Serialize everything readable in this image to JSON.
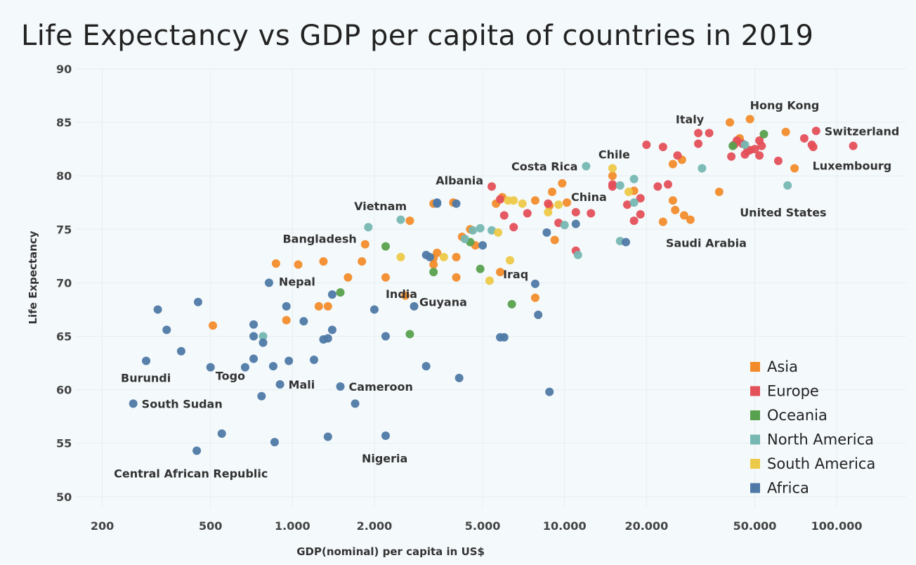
{
  "colors": {
    "Asia": "#f28c2b",
    "Europe": "#e4505a",
    "Oceania": "#58a14e",
    "North America": "#76b7b2",
    "South America": "#edc948",
    "Africa": "#4e79a7"
  },
  "chart_data": {
    "type": "scatter",
    "title": "Life Expectancy vs GDP per capita of countries in 2019",
    "xlabel": "GDP(nominal) per capita in US$",
    "ylabel": "Life Expectancy",
    "xscale": "log",
    "xlim": [
      160,
      180000
    ],
    "ylim": [
      49,
      90
    ],
    "x_ticks": [
      {
        "value": 200,
        "label": "200"
      },
      {
        "value": 500,
        "label": "500"
      },
      {
        "value": 1000,
        "label": "1.000"
      },
      {
        "value": 2000,
        "label": "2.000"
      },
      {
        "value": 5000,
        "label": "5.000"
      },
      {
        "value": 10000,
        "label": "10.000"
      },
      {
        "value": 20000,
        "label": "20.000"
      },
      {
        "value": 50000,
        "label": "50.000"
      },
      {
        "value": 100000,
        "label": "100.000"
      }
    ],
    "y_ticks": [
      50,
      55,
      60,
      65,
      70,
      75,
      80,
      85,
      90
    ],
    "grid": true,
    "legend_position": "bottom-right",
    "legend": [
      "Asia",
      "Europe",
      "Oceania",
      "North America",
      "South America",
      "Africa"
    ],
    "series": [
      {
        "name": "Asia",
        "points": [
          [
            40500,
            85.0
          ],
          [
            44000,
            83.5
          ],
          [
            48000,
            85.3
          ],
          [
            65000,
            84.1
          ],
          [
            70000,
            80.7
          ],
          [
            27000,
            81.5
          ],
          [
            25000,
            81.1
          ],
          [
            37000,
            78.5
          ],
          [
            23000,
            75.7
          ],
          [
            25000,
            77.7
          ],
          [
            25500,
            76.8
          ],
          [
            27500,
            76.3
          ],
          [
            29000,
            75.9
          ],
          [
            18000,
            78.6
          ],
          [
            15000,
            80.0
          ],
          [
            10200,
            77.5
          ],
          [
            9800,
            79.3
          ],
          [
            9000,
            78.5
          ],
          [
            8800,
            77.2
          ],
          [
            7800,
            77.7
          ],
          [
            9200,
            74.0
          ],
          [
            7800,
            68.6
          ],
          [
            5600,
            77.4
          ],
          [
            5900,
            78.0
          ],
          [
            4700,
            73.5
          ],
          [
            4200,
            74.3
          ],
          [
            4500,
            75.0
          ],
          [
            4000,
            72.4
          ],
          [
            4000,
            70.5
          ],
          [
            5800,
            71.0
          ],
          [
            3400,
            72.8
          ],
          [
            3300,
            71.7
          ],
          [
            3300,
            72.3
          ],
          [
            3300,
            77.4
          ],
          [
            3900,
            77.5
          ],
          [
            2700,
            75.8
          ],
          [
            1850,
            73.6
          ],
          [
            1800,
            72.0
          ],
          [
            2200,
            70.5
          ],
          [
            2600,
            68.8
          ],
          [
            1600,
            70.5
          ],
          [
            1350,
            67.8
          ],
          [
            1250,
            67.8
          ],
          [
            1300,
            72.0
          ],
          [
            1050,
            71.7
          ],
          [
            870,
            71.8
          ],
          [
            950,
            66.5
          ],
          [
            510,
            66.0
          ]
        ]
      },
      {
        "name": "Europe",
        "points": [
          [
            84000,
            84.2
          ],
          [
            81000,
            82.9
          ],
          [
            76000,
            83.5
          ],
          [
            82000,
            82.7
          ],
          [
            115000,
            82.8
          ],
          [
            61000,
            81.4
          ],
          [
            52000,
            83.3
          ],
          [
            50000,
            82.5
          ],
          [
            46000,
            82.0
          ],
          [
            48000,
            82.4
          ],
          [
            45000,
            83.0
          ],
          [
            43000,
            83.3
          ],
          [
            42000,
            82.9
          ],
          [
            47000,
            82.3
          ],
          [
            53000,
            82.8
          ],
          [
            52000,
            81.9
          ],
          [
            41000,
            81.8
          ],
          [
            34000,
            84.0
          ],
          [
            31000,
            84.0
          ],
          [
            31000,
            83.0
          ],
          [
            20000,
            82.9
          ],
          [
            23000,
            82.7
          ],
          [
            26000,
            81.9
          ],
          [
            22000,
            79.0
          ],
          [
            24000,
            79.2
          ],
          [
            19000,
            77.9
          ],
          [
            18000,
            75.8
          ],
          [
            19000,
            76.4
          ],
          [
            17000,
            77.3
          ],
          [
            15000,
            79.2
          ],
          [
            15000,
            79.0
          ],
          [
            12500,
            76.5
          ],
          [
            11000,
            76.6
          ],
          [
            11000,
            73.0
          ],
          [
            9500,
            75.6
          ],
          [
            8700,
            77.4
          ],
          [
            7300,
            76.5
          ],
          [
            6500,
            75.2
          ],
          [
            6000,
            76.3
          ],
          [
            5400,
            79.0
          ],
          [
            5800,
            77.8
          ]
        ]
      },
      {
        "name": "Oceania",
        "points": [
          [
            54000,
            83.9
          ],
          [
            41500,
            82.8
          ],
          [
            6400,
            68.0
          ],
          [
            4900,
            71.3
          ],
          [
            4500,
            73.8
          ],
          [
            3300,
            71.0
          ],
          [
            2700,
            65.2
          ],
          [
            2200,
            73.4
          ],
          [
            1500,
            69.1
          ]
        ]
      },
      {
        "name": "North America",
        "points": [
          [
            66000,
            79.1
          ],
          [
            46000,
            82.9
          ],
          [
            32000,
            80.7
          ],
          [
            18000,
            79.7
          ],
          [
            18000,
            77.5
          ],
          [
            16000,
            79.1
          ],
          [
            16000,
            73.9
          ],
          [
            12000,
            80.9
          ],
          [
            10000,
            75.4
          ],
          [
            11200,
            72.6
          ],
          [
            5400,
            74.9
          ],
          [
            4600,
            74.9
          ],
          [
            4900,
            75.1
          ],
          [
            4300,
            74.1
          ],
          [
            2500,
            75.9
          ],
          [
            1900,
            75.2
          ],
          [
            780,
            65.0
          ]
        ]
      },
      {
        "name": "South America",
        "points": [
          [
            15000,
            80.7
          ],
          [
            17200,
            78.5
          ],
          [
            9500,
            77.3
          ],
          [
            8700,
            76.6
          ],
          [
            6500,
            77.7
          ],
          [
            6200,
            77.7
          ],
          [
            7000,
            77.4
          ],
          [
            5700,
            74.7
          ],
          [
            5300,
            70.2
          ],
          [
            6300,
            72.1
          ],
          [
            3600,
            72.4
          ],
          [
            2500,
            72.4
          ]
        ]
      },
      {
        "name": "Africa",
        "points": [
          [
            3400,
            77.4
          ],
          [
            3400,
            77.5
          ],
          [
            4000,
            77.4
          ],
          [
            11000,
            75.5
          ],
          [
            16800,
            73.8
          ],
          [
            8600,
            74.7
          ],
          [
            7800,
            69.9
          ],
          [
            8000,
            67.0
          ],
          [
            6000,
            64.9
          ],
          [
            5800,
            64.9
          ],
          [
            5000,
            73.5
          ],
          [
            3200,
            72.4
          ],
          [
            3100,
            72.6
          ],
          [
            2800,
            67.8
          ],
          [
            3100,
            62.2
          ],
          [
            4100,
            61.1
          ],
          [
            8800,
            59.8
          ],
          [
            2200,
            65.0
          ],
          [
            2000,
            67.5
          ],
          [
            2200,
            55.7
          ],
          [
            1700,
            58.7
          ],
          [
            1500,
            60.3
          ],
          [
            1350,
            55.6
          ],
          [
            1400,
            65.6
          ],
          [
            1350,
            64.8
          ],
          [
            1300,
            64.7
          ],
          [
            1400,
            68.9
          ],
          [
            1200,
            62.8
          ],
          [
            1100,
            66.4
          ],
          [
            950,
            67.8
          ],
          [
            970,
            62.7
          ],
          [
            900,
            60.5
          ],
          [
            820,
            70.0
          ],
          [
            850,
            62.2
          ],
          [
            860,
            55.1
          ],
          [
            780,
            64.4
          ],
          [
            770,
            59.4
          ],
          [
            720,
            66.1
          ],
          [
            720,
            65.0
          ],
          [
            720,
            62.9
          ],
          [
            670,
            62.1
          ],
          [
            550,
            55.9
          ],
          [
            500,
            62.1
          ],
          [
            445,
            54.3
          ],
          [
            450,
            68.2
          ],
          [
            390,
            63.6
          ],
          [
            345,
            65.6
          ],
          [
            320,
            67.5
          ],
          [
            290,
            62.7
          ],
          [
            260,
            58.7
          ]
        ]
      }
    ],
    "annotations": [
      {
        "text": "Hong Kong",
        "x": 48000,
        "y": 85.3
      },
      {
        "text": "Italy",
        "x": 31000,
        "y": 84.0
      },
      {
        "text": "Switzerland",
        "x": 84000,
        "y": 84.2
      },
      {
        "text": "Luxembourg",
        "x": 115000,
        "y": 82.8
      },
      {
        "text": "Chile",
        "x": 15000,
        "y": 80.7
      },
      {
        "text": "Costa Rica",
        "x": 12000,
        "y": 80.9
      },
      {
        "text": "United States",
        "x": 66000,
        "y": 79.1
      },
      {
        "text": "China",
        "x": 10200,
        "y": 77.5
      },
      {
        "text": "Albania",
        "x": 5400,
        "y": 79.0
      },
      {
        "text": "Vietnam",
        "x": 2600,
        "y": 75.8
      },
      {
        "text": "Saudi Arabia",
        "x": 23000,
        "y": 75.7
      },
      {
        "text": "Bangladesh",
        "x": 1850,
        "y": 73.6
      },
      {
        "text": "Nepal",
        "x": 820,
        "y": 70.0
      },
      {
        "text": "India",
        "x": 2200,
        "y": 70.5
      },
      {
        "text": "Iraq",
        "x": 5800,
        "y": 71.0
      },
      {
        "text": "Guyana",
        "x": 5300,
        "y": 70.2
      },
      {
        "text": "Burundi",
        "x": 290,
        "y": 62.7
      },
      {
        "text": "Togo",
        "x": 720,
        "y": 62.9
      },
      {
        "text": "Mali",
        "x": 900,
        "y": 60.5
      },
      {
        "text": "Cameroon",
        "x": 1500,
        "y": 60.3
      },
      {
        "text": "South Sudan",
        "x": 260,
        "y": 58.7
      },
      {
        "text": "Nigeria",
        "x": 2200,
        "y": 55.7
      },
      {
        "text": "Central African Republic",
        "x": 445,
        "y": 54.3
      }
    ]
  }
}
